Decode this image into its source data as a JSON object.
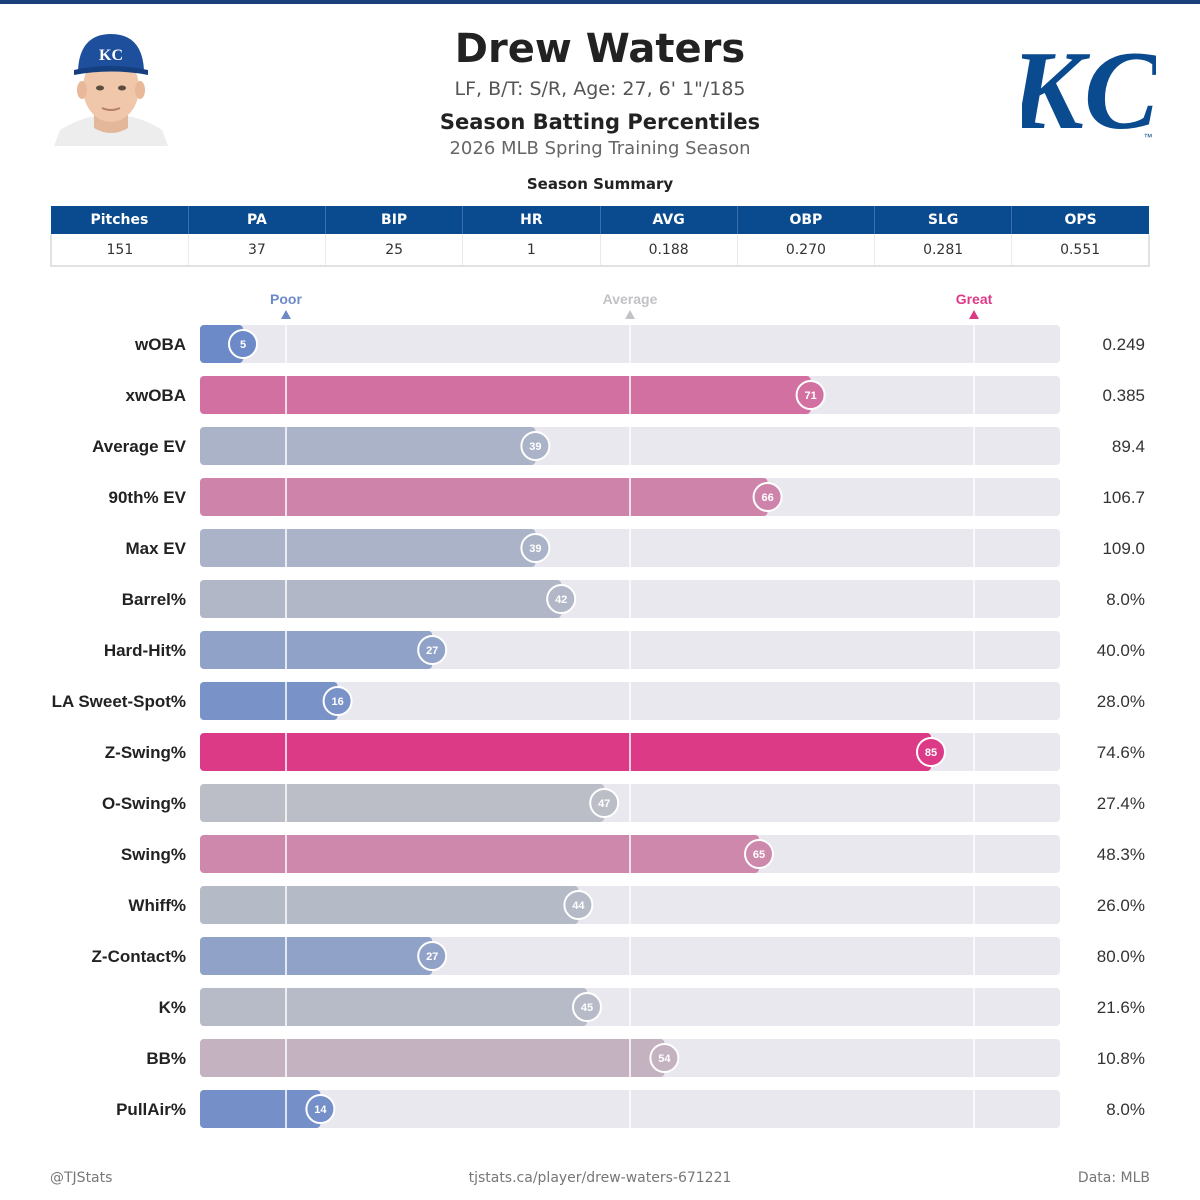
{
  "header": {
    "player_name": "Drew Waters",
    "bio": "LF, B/T: S/R, Age: 27, 6' 1\"/185",
    "title": "Season Batting Percentiles",
    "season": "2026 MLB Spring Training Season",
    "team_logo_text": "KC",
    "team_logo_tm": "™",
    "cap_logo_text": "KC"
  },
  "summary": {
    "title": "Season Summary",
    "headers": [
      "Pitches",
      "PA",
      "BIP",
      "HR",
      "AVG",
      "OBP",
      "SLG",
      "OPS"
    ],
    "values": [
      "151",
      "37",
      "25",
      "1",
      "0.188",
      "0.270",
      "0.281",
      "0.551"
    ]
  },
  "colors": {
    "header_blue": "#0a4a8f",
    "poor": "#6c8ac8",
    "average": "#c2c2c7",
    "great": "#dc3a87",
    "track": "#e8e8ee",
    "logo_blue": "#0a4a8f"
  },
  "chart_data": {
    "type": "bar",
    "orientation": "horizontal",
    "xlim": [
      0,
      100
    ],
    "reference_markers": [
      {
        "label": "Poor",
        "value": 10
      },
      {
        "label": "Average",
        "value": 50
      },
      {
        "label": "Great",
        "value": 90
      }
    ],
    "categories": [
      "wOBA",
      "xwOBA",
      "Average EV",
      "90th% EV",
      "Max EV",
      "Barrel%",
      "Hard-Hit%",
      "LA Sweet-Spot%",
      "Z-Swing%",
      "O-Swing%",
      "Swing%",
      "Whiff%",
      "Z-Contact%",
      "K%",
      "BB%",
      "PullAir%"
    ],
    "percentiles": [
      5,
      71,
      39,
      66,
      39,
      42,
      27,
      16,
      85,
      47,
      65,
      44,
      27,
      45,
      54,
      14
    ],
    "stat_values": [
      "0.249",
      "0.385",
      "89.4",
      "106.7",
      "109.0",
      "8.0%",
      "40.0%",
      "28.0%",
      "74.6%",
      "27.4%",
      "48.3%",
      "26.0%",
      "80.0%",
      "21.6%",
      "10.8%",
      "8.0%"
    ]
  },
  "footer": {
    "left": "@TJStats",
    "center": "tjstats.ca/player/drew-waters-671221",
    "right": "Data: MLB"
  }
}
